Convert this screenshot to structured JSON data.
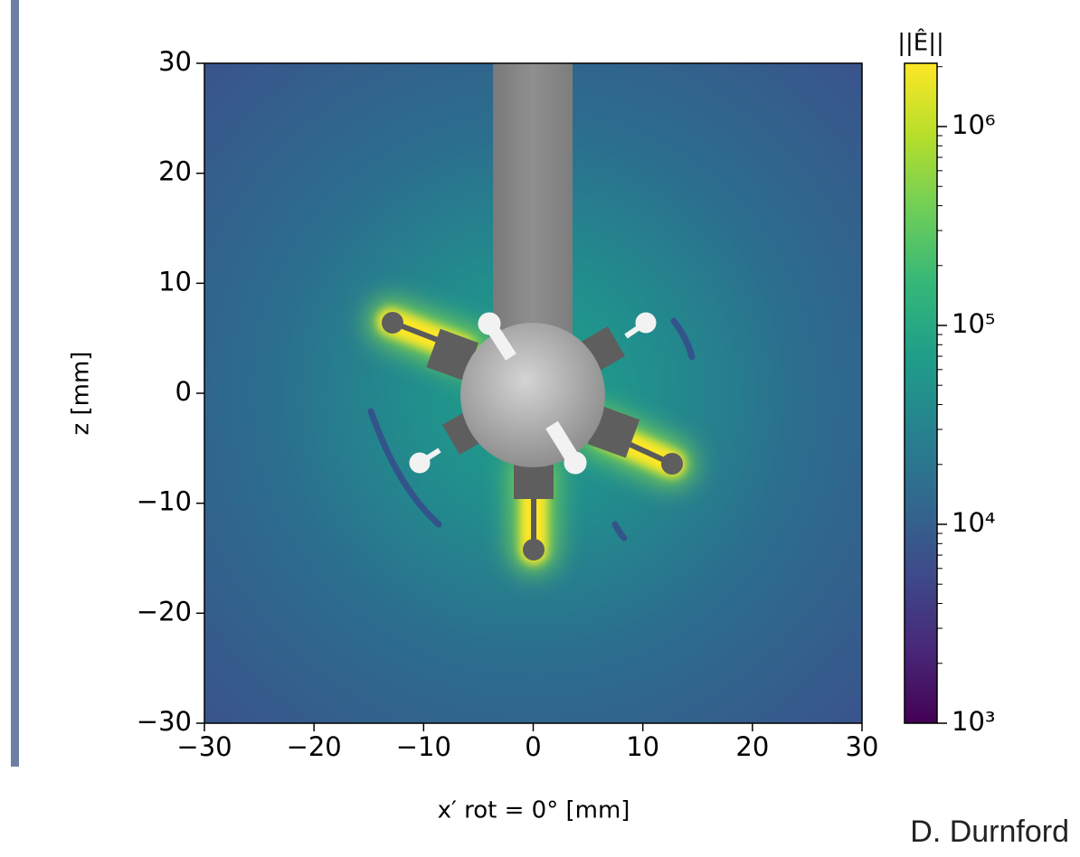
{
  "chart_data": {
    "type": "heatmap",
    "xlabel": "x′ rot = 0° [mm]",
    "ylabel": "z [mm]",
    "xlim": [
      -30,
      30
    ],
    "xticks": [
      {
        "value": -30,
        "label": "−30"
      },
      {
        "value": -20,
        "label": "−20"
      },
      {
        "value": -10,
        "label": "−10"
      },
      0,
      10,
      20,
      30
    ],
    "ylim": [
      -30,
      30
    ],
    "yticks": [
      {
        "value": -30,
        "label": "−30"
      },
      {
        "value": -20,
        "label": "−20"
      },
      {
        "value": -10,
        "label": "−10"
      },
      0,
      10,
      20,
      30
    ],
    "colorbar_label": "||Ê||",
    "colormap": "viridis",
    "color_log_scale": true,
    "clim": [
      1000,
      2080000
    ],
    "cticks": [
      {
        "value": 1000,
        "label": "10³"
      },
      {
        "value": 10000,
        "label": "10⁴"
      },
      {
        "value": 100000,
        "label": "10⁵"
      },
      {
        "value": 1000000,
        "label": "10⁶"
      }
    ],
    "cminorticks": [
      2000,
      3000,
      4000,
      5000,
      6000,
      7000,
      8000,
      9000,
      20000,
      30000,
      40000,
      50000,
      60000,
      70000,
      80000,
      90000,
      200000,
      300000,
      400000,
      500000,
      600000,
      700000,
      800000,
      900000,
      2000000
    ],
    "annotation": "D. Durnford"
  }
}
